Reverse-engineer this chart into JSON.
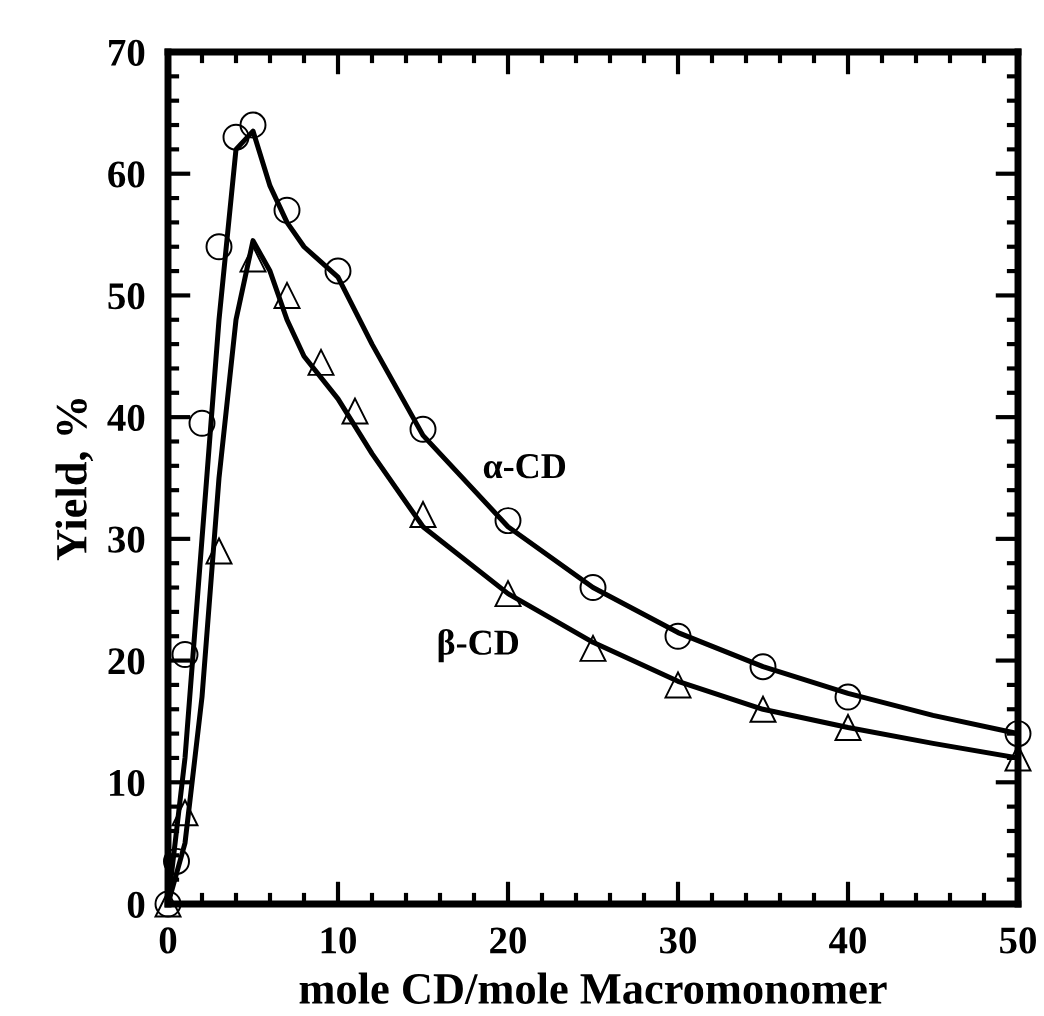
{
  "chart_data": {
    "type": "scatter",
    "xlabel": "mole CD/mole Macromonomer",
    "ylabel": "Yield, %",
    "xlim": [
      0,
      50
    ],
    "ylim": [
      0,
      70
    ],
    "xticks": [
      0,
      10,
      20,
      30,
      40,
      50
    ],
    "yticks": [
      0,
      10,
      20,
      30,
      40,
      50,
      60,
      70
    ],
    "grid": false,
    "legend": false,
    "series": [
      {
        "marker": "circle",
        "color": "#000000",
        "x": [
          0,
          0.5,
          1,
          2,
          3,
          4,
          5,
          7,
          10,
          15,
          20,
          25,
          30,
          35,
          40,
          50
        ],
        "values": [
          0,
          3.5,
          20.5,
          39.5,
          54,
          63,
          64,
          57,
          52,
          39,
          31.5,
          26,
          22,
          19.5,
          17,
          14
        ]
      },
      {
        "marker": "triangle",
        "color": "#000000",
        "x": [
          0,
          1,
          3,
          5,
          7,
          9,
          11,
          15,
          20,
          25,
          30,
          35,
          40,
          50
        ],
        "values": [
          0,
          7.5,
          29,
          53,
          50,
          44.5,
          40.5,
          32,
          25.5,
          21,
          18,
          16,
          14.5,
          12
        ]
      },
      {
        "type": "line",
        "name": "α-CD",
        "marker": "none",
        "color": "#000000",
        "x": [
          0,
          1,
          2,
          3,
          4,
          5,
          6,
          7,
          8,
          10,
          12,
          15,
          20,
          25,
          30,
          35,
          40,
          45,
          50
        ],
        "values": [
          0,
          12,
          30,
          48,
          62,
          63.5,
          59,
          56,
          54,
          51.5,
          46,
          38.5,
          31,
          26,
          22.3,
          19.5,
          17.3,
          15.5,
          14
        ]
      },
      {
        "type": "line",
        "name": "β-CD",
        "marker": "none",
        "color": "#000000",
        "x": [
          0,
          1,
          2,
          3,
          4,
          5,
          6,
          7,
          8,
          10,
          12,
          15,
          20,
          25,
          30,
          35,
          40,
          45,
          50
        ],
        "values": [
          0,
          5,
          17,
          35,
          48,
          54.5,
          52,
          48,
          45,
          41.5,
          37,
          31,
          25.5,
          21.5,
          18.3,
          16,
          14.5,
          13.2,
          12
        ]
      }
    ]
  }
}
